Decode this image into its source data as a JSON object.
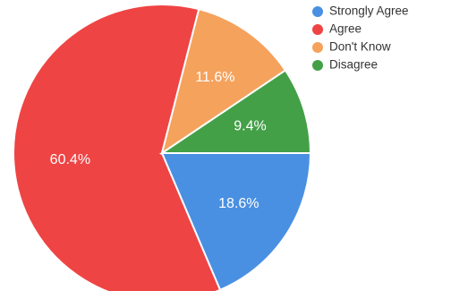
{
  "chart_data": {
    "type": "pie",
    "categories": [
      "Strongly Agree",
      "Agree",
      "Don't Know",
      "Disagree"
    ],
    "values": [
      18.6,
      60.4,
      11.6,
      9.4
    ],
    "labels": [
      "18.6%",
      "60.4%",
      "11.6%",
      "9.4%"
    ],
    "colors": [
      "#4a90e2",
      "#ef4444",
      "#f5a25d",
      "#43a047"
    ],
    "start_angle_deg": 0,
    "direction": "clockwise",
    "legend_position": "top-right"
  }
}
